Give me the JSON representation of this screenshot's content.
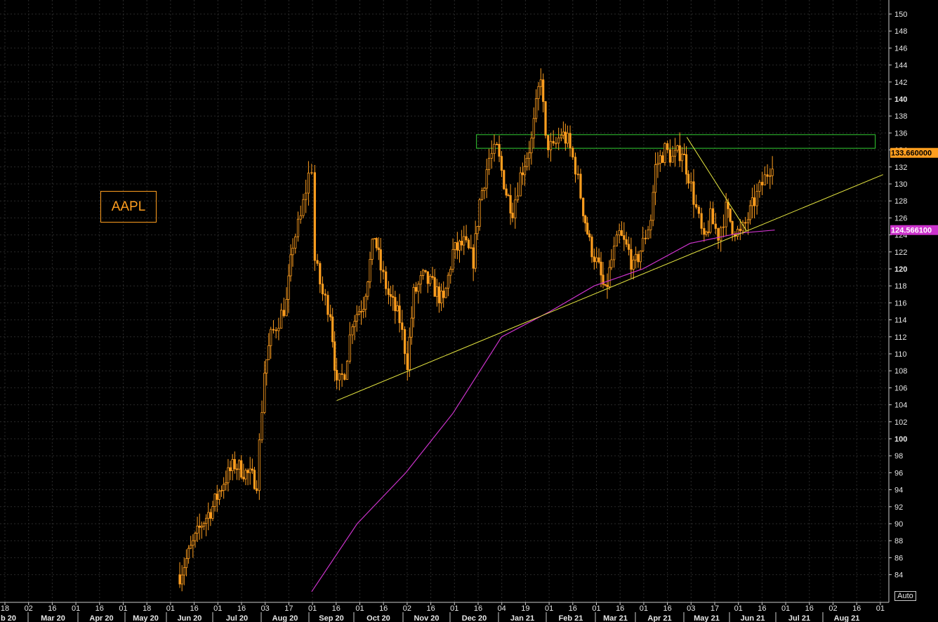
{
  "ticker": "AAPL",
  "auto_label": "Auto",
  "colors": {
    "background": "#000000",
    "candle": "#ff9e1f",
    "moving_average": "#cc33cc",
    "trendline": "#e6e640",
    "resistance_zone": "#33cc33",
    "last_price_tag": "#ff9e1f",
    "ma_price_tag": "#cc33cc"
  },
  "chart_data": {
    "type": "line",
    "y_axis": {
      "side": "right",
      "range": [
        82,
        151
      ],
      "ticks": [
        84,
        86,
        88,
        90,
        92,
        94,
        96,
        98,
        100,
        102,
        104,
        106,
        108,
        110,
        112,
        114,
        116,
        118,
        120,
        122,
        124,
        126,
        128,
        130,
        132,
        134,
        136,
        138,
        140,
        142,
        144,
        146,
        148,
        150
      ],
      "bold_ticks": [
        100,
        120,
        140
      ]
    },
    "x_axis": {
      "day_ticks": [
        "18",
        "02",
        "16",
        "01",
        "16",
        "01",
        "18",
        "01",
        "16",
        "01",
        "16",
        "03",
        "17",
        "01",
        "16",
        "01",
        "16",
        "02",
        "16",
        "01",
        "16",
        "04",
        "19",
        "01",
        "16",
        "01",
        "16",
        "01",
        "16",
        "03",
        "17",
        "01",
        "16",
        "01",
        "16",
        "02",
        "16",
        "01"
      ],
      "month_labels": [
        "b 20",
        "Mar 20",
        "Apr 20",
        "May 20",
        "Jun 20",
        "Jul 20",
        "Aug 20",
        "Sep 20",
        "Oct 20",
        "Nov 20",
        "Dec 20",
        "Jan 21",
        "Feb 21",
        "Mar 21",
        "Apr 21",
        "May 21",
        "Jun 21",
        "Jul 21",
        "Aug 21"
      ]
    },
    "series": [
      {
        "type": "candlestick",
        "price_path": [
          [
            "2020-06-10",
            84
          ],
          [
            "2020-06-17",
            87
          ],
          [
            "2020-06-24",
            90
          ],
          [
            "2020-07-01",
            92
          ],
          [
            "2020-07-08",
            95
          ],
          [
            "2020-07-15",
            97
          ],
          [
            "2020-07-22",
            96
          ],
          [
            "2020-07-29",
            95
          ],
          [
            "2020-08-03",
            108
          ],
          [
            "2020-08-07",
            112
          ],
          [
            "2020-08-12",
            114
          ],
          [
            "2020-08-17",
            116
          ],
          [
            "2020-08-21",
            123
          ],
          [
            "2020-08-26",
            126
          ],
          [
            "2020-08-31",
            131
          ],
          [
            "2020-09-02",
            132
          ],
          [
            "2020-09-04",
            121
          ],
          [
            "2020-09-09",
            117
          ],
          [
            "2020-09-14",
            115
          ],
          [
            "2020-09-18",
            106
          ],
          [
            "2020-09-23",
            108
          ],
          [
            "2020-09-28",
            114
          ],
          [
            "2020-10-05",
            116
          ],
          [
            "2020-10-12",
            124
          ],
          [
            "2020-10-16",
            120
          ],
          [
            "2020-10-21",
            117
          ],
          [
            "2020-10-28",
            114
          ],
          [
            "2020-11-02",
            109
          ],
          [
            "2020-11-06",
            117
          ],
          [
            "2020-11-12",
            119
          ],
          [
            "2020-11-18",
            118
          ],
          [
            "2020-11-25",
            116
          ],
          [
            "2020-12-01",
            122
          ],
          [
            "2020-12-08",
            123
          ],
          [
            "2020-12-14",
            121
          ],
          [
            "2020-12-18",
            128
          ],
          [
            "2020-12-24",
            133
          ],
          [
            "2020-12-29",
            134
          ],
          [
            "2021-01-04",
            129
          ],
          [
            "2021-01-08",
            127
          ],
          [
            "2021-01-13",
            131
          ],
          [
            "2021-01-20",
            135
          ],
          [
            "2021-01-26",
            143
          ],
          [
            "2021-01-29",
            135
          ],
          [
            "2021-02-03",
            134
          ],
          [
            "2021-02-08",
            136
          ],
          [
            "2021-02-12",
            135
          ],
          [
            "2021-02-17",
            132
          ],
          [
            "2021-02-22",
            127
          ],
          [
            "2021-02-26",
            123
          ],
          [
            "2021-03-04",
            120
          ],
          [
            "2021-03-08",
            117
          ],
          [
            "2021-03-12",
            121
          ],
          [
            "2021-03-17",
            124
          ],
          [
            "2021-03-23",
            122
          ],
          [
            "2021-03-26",
            120
          ],
          [
            "2021-04-01",
            123
          ],
          [
            "2021-04-06",
            126
          ],
          [
            "2021-04-09",
            132
          ],
          [
            "2021-04-15",
            134
          ],
          [
            "2021-04-20",
            133
          ],
          [
            "2021-04-26",
            134
          ],
          [
            "2021-04-30",
            131
          ],
          [
            "2021-05-05",
            127
          ],
          [
            "2021-05-10",
            123
          ],
          [
            "2021-05-14",
            126
          ],
          [
            "2021-05-19",
            124
          ],
          [
            "2021-05-24",
            127
          ],
          [
            "2021-05-28",
            125
          ],
          [
            "2021-06-02",
            124
          ],
          [
            "2021-06-07",
            126
          ],
          [
            "2021-06-11",
            128
          ],
          [
            "2021-06-16",
            130
          ],
          [
            "2021-06-21",
            132
          ],
          [
            "2021-06-24",
            133.66
          ]
        ],
        "last_price": "133.660000"
      },
      {
        "type": "moving_average",
        "points": [
          [
            "2020-09-02",
            82
          ],
          [
            "2020-10-01",
            90
          ],
          [
            "2020-11-01",
            96
          ],
          [
            "2020-12-01",
            103
          ],
          [
            "2021-01-01",
            112
          ],
          [
            "2021-02-01",
            115
          ],
          [
            "2021-03-01",
            118
          ],
          [
            "2021-04-01",
            120
          ],
          [
            "2021-05-01",
            123
          ],
          [
            "2021-06-01",
            124.2
          ],
          [
            "2021-06-24",
            124.57
          ]
        ],
        "last_value": "124.566100"
      }
    ],
    "annotations": {
      "trendline": [
        [
          "2020-09-18",
          104.5
        ],
        [
          "2021-09-01",
          131.1
        ]
      ],
      "falling_line": [
        [
          "2021-04-29",
          135.5
        ],
        [
          "2021-06-06",
          124.5
        ]
      ],
      "resistance_zone": {
        "from": "2020-12-16",
        "to": "2021-08-27",
        "low": 134.2,
        "high": 135.8
      }
    }
  }
}
